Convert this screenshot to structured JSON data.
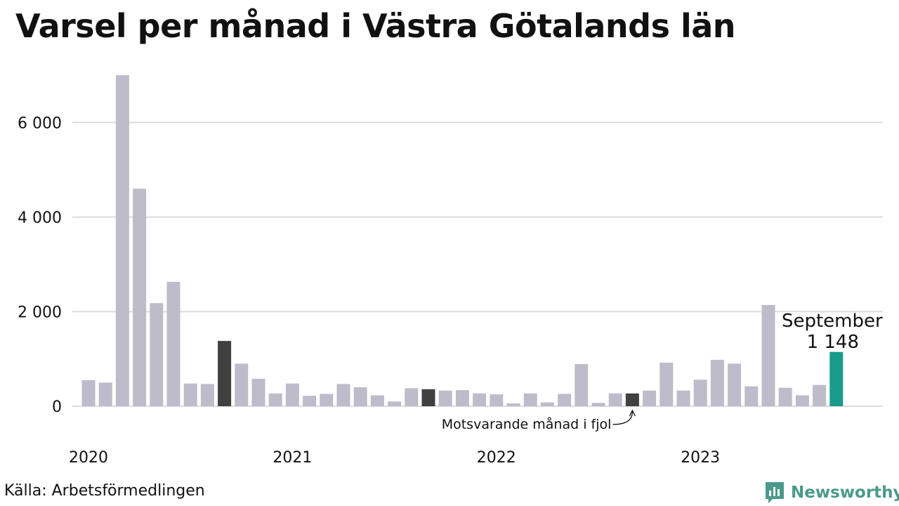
{
  "title": "Varsel per månad i Västra Götalands län",
  "source": "Källa: Arbetsförmedlingen",
  "brand": {
    "name": "Newsworthy",
    "icon": "newsworthy-logo-icon",
    "color": "#4a9a8c"
  },
  "colors": {
    "bar_default": "#bebbca",
    "bar_comparison": "#404040",
    "bar_current": "#1a9a8d",
    "grid": "#dcdcdc"
  },
  "chart_data": {
    "type": "bar",
    "title": "Varsel per månad i Västra Götalands län",
    "xlabel": "",
    "ylabel": "",
    "ylim": [
      0,
      7000
    ],
    "y_ticks": [
      0,
      2000,
      4000,
      6000
    ],
    "y_tick_labels": [
      "0",
      "2 000",
      "4 000",
      "6 000"
    ],
    "x_tick_labels": [
      {
        "label": "2020",
        "month_index": 0
      },
      {
        "label": "2021",
        "month_index": 12
      },
      {
        "label": "2022",
        "month_index": 24
      },
      {
        "label": "2023",
        "month_index": 36
      }
    ],
    "grid": true,
    "start_month": "2020-01",
    "values": [
      550,
      500,
      7000,
      4600,
      2180,
      2630,
      480,
      470,
      1380,
      900,
      580,
      270,
      480,
      220,
      260,
      470,
      400,
      230,
      100,
      380,
      360,
      330,
      340,
      270,
      250,
      60,
      270,
      80,
      260,
      890,
      70,
      270,
      270,
      330,
      920,
      330,
      560,
      980,
      900,
      420,
      2140,
      390,
      230,
      450,
      1148
    ],
    "highlight": {
      "current_index": 44,
      "comparison_indices": [
        8,
        20,
        32
      ]
    },
    "annotations": {
      "current_month": "September",
      "current_value": "1 148",
      "comparison": "Motsvarande månad i fjol"
    }
  }
}
